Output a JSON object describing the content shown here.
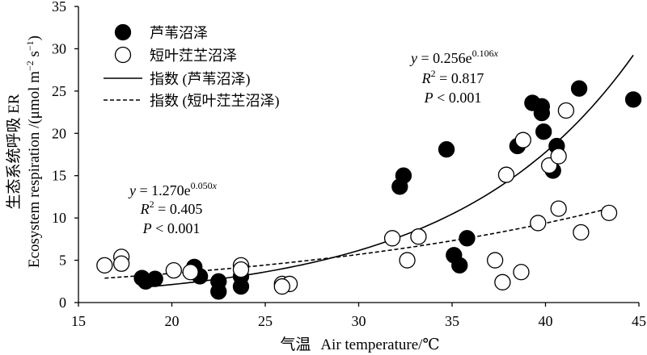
{
  "chart_data": {
    "type": "scatter",
    "xlabel_zh": "气温",
    "xlabel_en": "Air temperature/℃",
    "ylabel_zh": "生态系统呼吸 ER",
    "ylabel_en": {
      "pre": "Ecosystem respiration /(μmol m",
      "sup1": "−2",
      "mid": " s",
      "sup2": "−1",
      "post": ")"
    },
    "xlim": [
      15,
      45
    ],
    "ylim": [
      0,
      35
    ],
    "x_ticks": [
      15,
      20,
      25,
      30,
      35,
      40,
      45
    ],
    "y_ticks": [
      0,
      5,
      10,
      15,
      20,
      25,
      30,
      35
    ],
    "grid": false,
    "legend_position": "top-left",
    "series": [
      {
        "name": "芦苇沼泽",
        "marker": "filled-circle",
        "color": "#000000",
        "points": [
          [
            18.4,
            2.9
          ],
          [
            18.6,
            2.5
          ],
          [
            19.1,
            2.8
          ],
          [
            21.2,
            4.2
          ],
          [
            21.5,
            3.1
          ],
          [
            22.5,
            2.5
          ],
          [
            22.5,
            1.3
          ],
          [
            23.7,
            3.1
          ],
          [
            23.7,
            1.9
          ],
          [
            32.2,
            13.7
          ],
          [
            32.4,
            15.0
          ],
          [
            34.7,
            18.1
          ],
          [
            35.1,
            5.6
          ],
          [
            35.4,
            4.4
          ],
          [
            35.8,
            7.6
          ],
          [
            38.5,
            18.5
          ],
          [
            39.3,
            23.6
          ],
          [
            39.8,
            23.2
          ],
          [
            39.8,
            22.4
          ],
          [
            39.9,
            20.2
          ],
          [
            40.6,
            18.5
          ],
          [
            40.4,
            15.6
          ],
          [
            41.8,
            25.3
          ],
          [
            44.7,
            24.0
          ]
        ]
      },
      {
        "name": "短叶茳芏沼泽",
        "marker": "open-circle",
        "color": "#000000",
        "points": [
          [
            16.4,
            4.4
          ],
          [
            17.3,
            5.4
          ],
          [
            17.3,
            4.6
          ],
          [
            20.1,
            3.8
          ],
          [
            21.0,
            3.6
          ],
          [
            23.7,
            4.4
          ],
          [
            23.7,
            3.9
          ],
          [
            25.9,
            2.2
          ],
          [
            26.3,
            2.2
          ],
          [
            25.9,
            1.9
          ],
          [
            31.8,
            7.6
          ],
          [
            32.6,
            5.0
          ],
          [
            33.2,
            7.8
          ],
          [
            37.3,
            5.0
          ],
          [
            37.7,
            2.4
          ],
          [
            38.7,
            3.6
          ],
          [
            37.9,
            15.1
          ],
          [
            38.8,
            19.2
          ],
          [
            41.1,
            22.7
          ],
          [
            40.2,
            16.2
          ],
          [
            40.7,
            17.3
          ],
          [
            40.7,
            11.1
          ],
          [
            39.6,
            9.4
          ],
          [
            41.9,
            8.3
          ],
          [
            43.4,
            10.6
          ]
        ]
      }
    ],
    "fits": [
      {
        "name": "指数 (芦苇沼泽)",
        "line": "solid",
        "a": 0.256,
        "b": 0.106,
        "x_span": [
          18.4,
          44.7
        ],
        "equation": {
          "y": "y",
          "rhs": " = 0.256e",
          "exp": "0.106",
          "exp_var": "x"
        },
        "r2": {
          "r": "R",
          "sup": "2",
          "rhs": " = 0.817"
        },
        "p": {
          "p": "P",
          "rhs": " < 0.001"
        }
      },
      {
        "name": "指数 (短叶茳芏沼泽)",
        "line": "dashed",
        "a": 1.27,
        "b": 0.05,
        "x_span": [
          16.4,
          43.4
        ],
        "equation": {
          "y": "y",
          "rhs": " = 1.270e",
          "exp": "0.050",
          "exp_var": "x"
        },
        "r2": {
          "r": "R",
          "sup": "2",
          "rhs": " = 0.405"
        },
        "p": {
          "p": "P",
          "rhs": " < 0.001"
        }
      }
    ]
  }
}
